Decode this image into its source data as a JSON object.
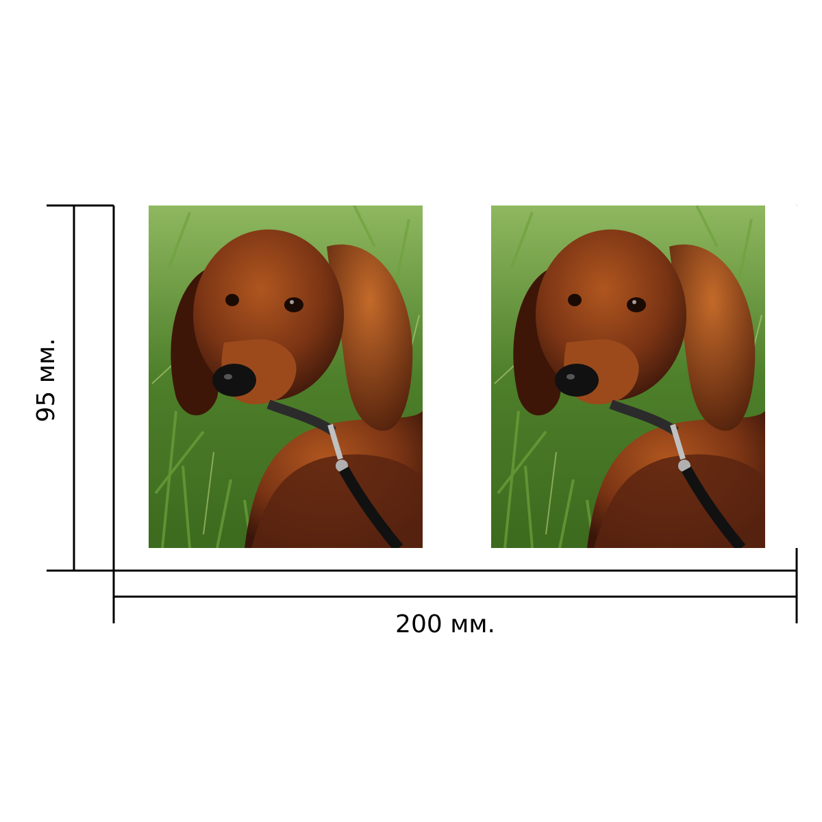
{
  "dimensions": {
    "width_label": "200 мм.",
    "height_label": "95 мм."
  },
  "photos": [
    {
      "subject": "dog-photo",
      "position": "left"
    },
    {
      "subject": "dog-photo",
      "position": "right"
    }
  ],
  "colors": {
    "line": "#000000",
    "background": "#ffffff",
    "grass": "#5f8f3a",
    "fur": "#7a3414"
  }
}
